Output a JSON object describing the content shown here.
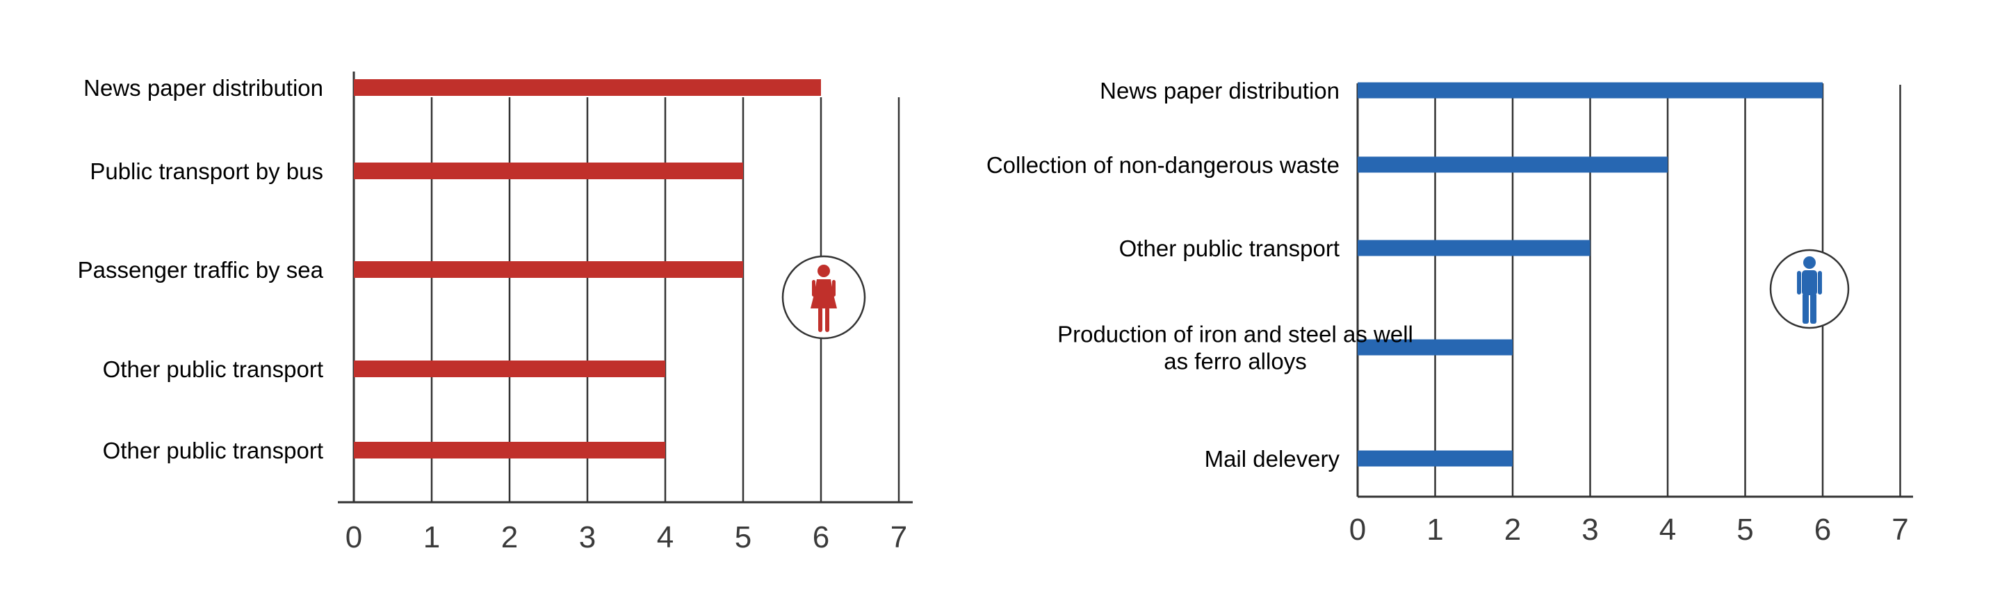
{
  "chart_data": [
    {
      "type": "bar",
      "orientation": "horizontal",
      "categories": [
        [
          "News paper distribution"
        ],
        [
          "Public transport by bus"
        ],
        [
          "Passenger traffic by sea"
        ],
        [
          "Other public transport"
        ],
        [
          "Other public transport"
        ]
      ],
      "values": [
        6,
        5,
        5,
        4,
        4
      ],
      "xlim": [
        0,
        7
      ],
      "x_ticks": [
        "0",
        "1",
        "2",
        "3",
        "4",
        "5",
        "6",
        "7"
      ],
      "grid": "vertical",
      "bar_color": "#c0302b",
      "icon": "female-icon",
      "icon_color": "#c0302b"
    },
    {
      "type": "bar",
      "orientation": "horizontal",
      "categories": [
        [
          "News paper distribution"
        ],
        [
          "Collection of non-dangerous waste"
        ],
        [
          "Other public transport"
        ],
        [
          "Production of iron and steel as well",
          "as ferro alloys"
        ],
        [
          "Mail delevery"
        ]
      ],
      "values": [
        6,
        4,
        3,
        2,
        2
      ],
      "xlim": [
        0,
        7
      ],
      "x_ticks": [
        "0",
        "1",
        "2",
        "3",
        "4",
        "5",
        "6",
        "7"
      ],
      "grid": "vertical",
      "bar_color": "#2767b2",
      "icon": "male-icon",
      "icon_color": "#2767b2"
    }
  ]
}
